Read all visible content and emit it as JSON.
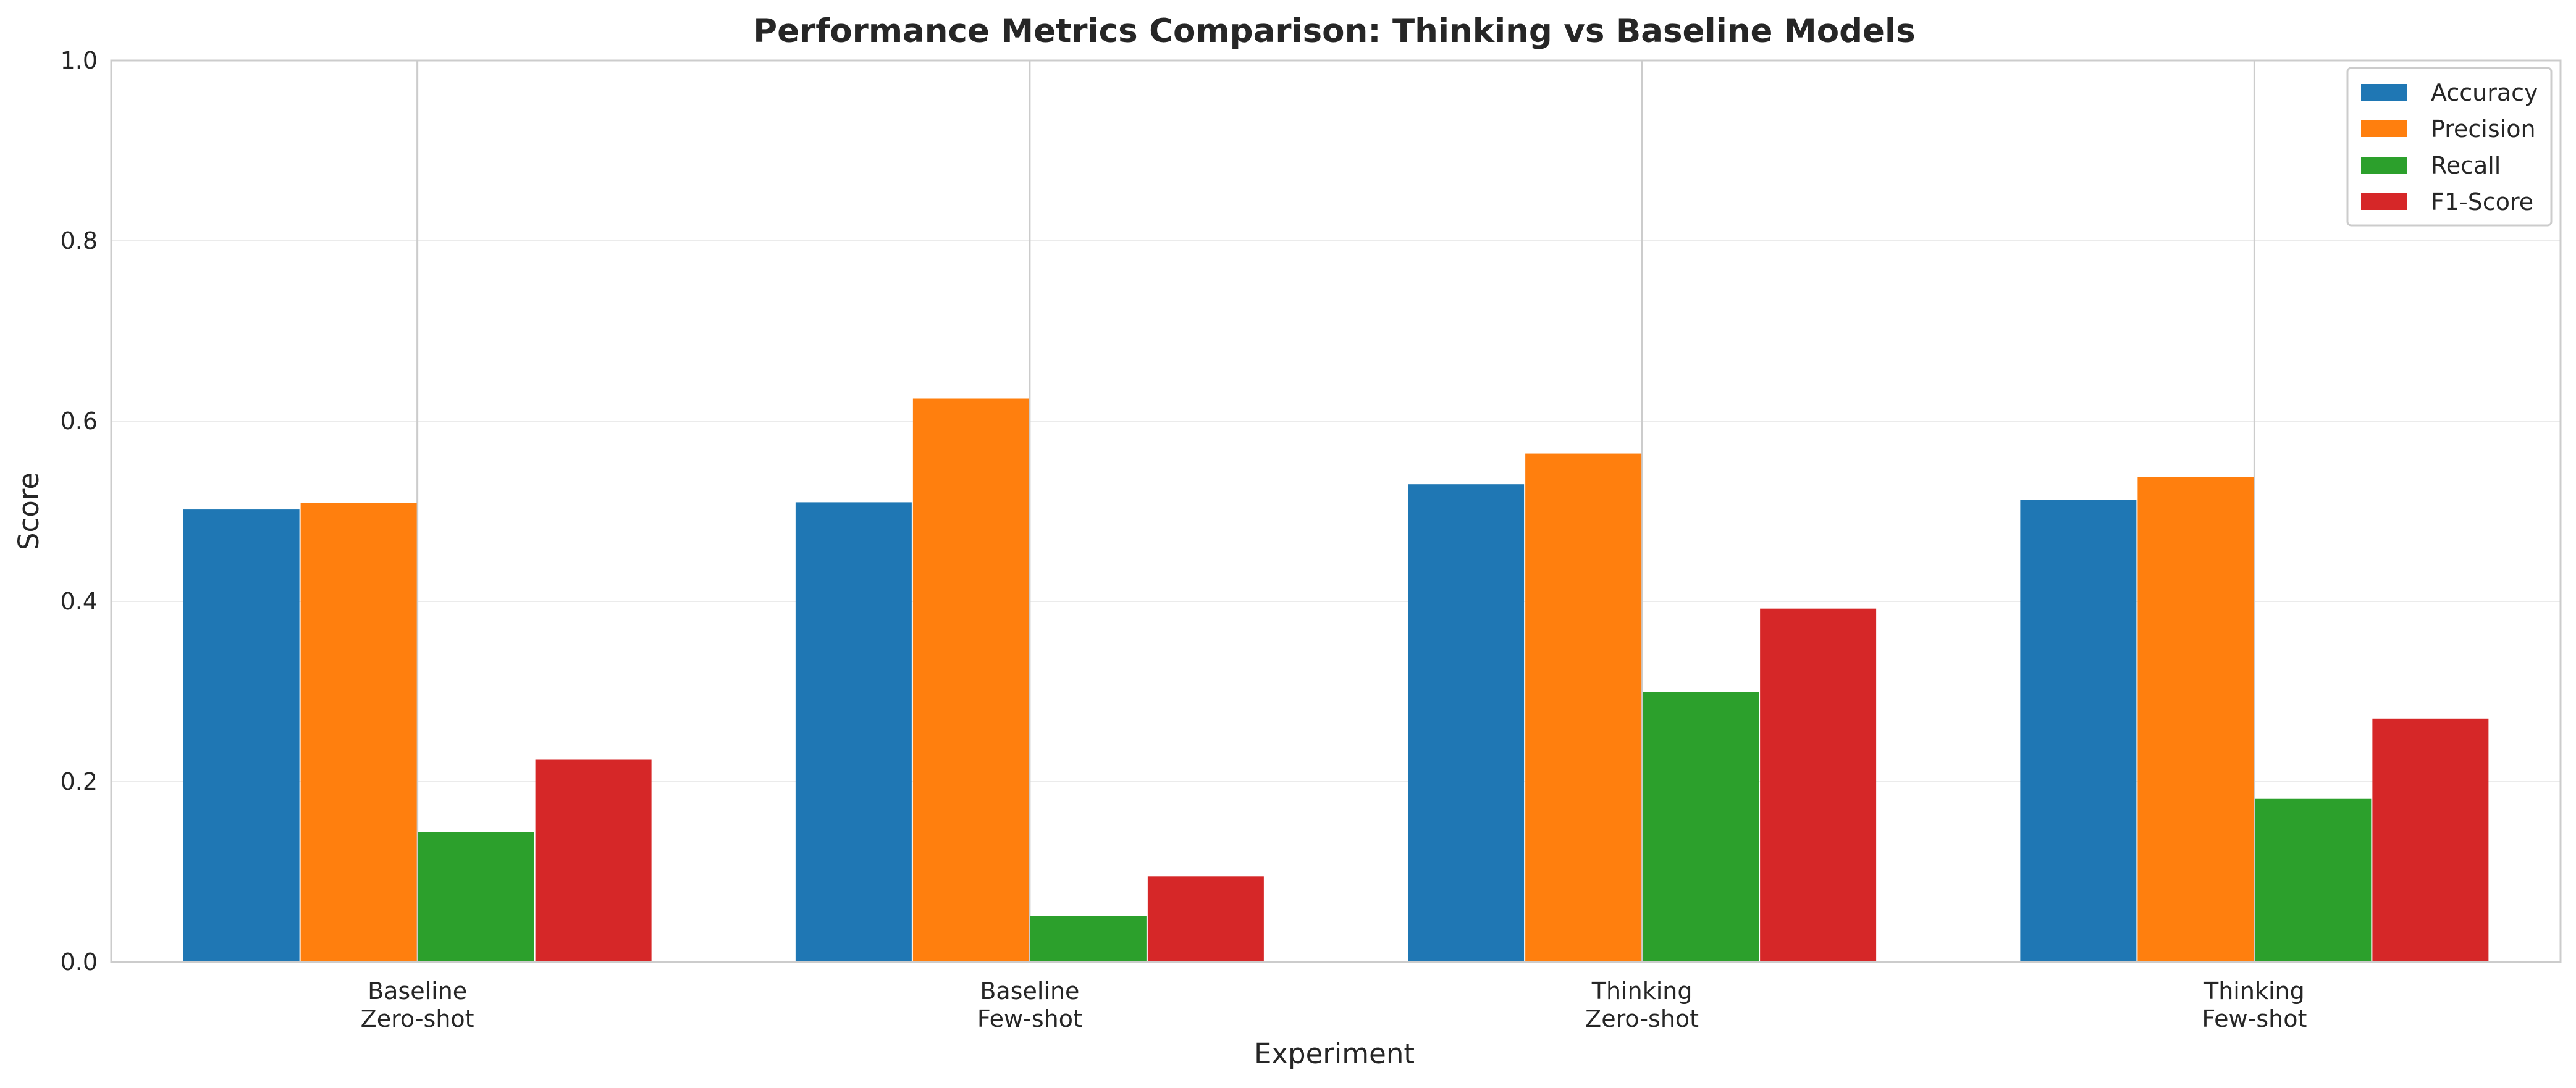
{
  "chart_data": {
    "type": "bar",
    "title": "Performance Metrics Comparison: Thinking vs Baseline Models",
    "xlabel": "Experiment",
    "ylabel": "Score",
    "ylim": [
      0,
      1.0
    ],
    "yticks": [
      "0.0",
      "0.2",
      "0.4",
      "0.6",
      "0.8",
      "1.0"
    ],
    "grid": true,
    "legend_position": "top-right",
    "categories": [
      [
        "Baseline",
        "Zero-shot"
      ],
      [
        "Baseline",
        "Few-shot"
      ],
      [
        "Thinking",
        "Zero-shot"
      ],
      [
        "Thinking",
        "Few-shot"
      ]
    ],
    "series": [
      {
        "name": "Accuracy",
        "color": "#1f77b4",
        "values": [
          0.502,
          0.51,
          0.53,
          0.513
        ]
      },
      {
        "name": "Precision",
        "color": "#ff7f0e",
        "values": [
          0.509,
          0.625,
          0.564,
          0.538
        ]
      },
      {
        "name": "Recall",
        "color": "#2ca02c",
        "values": [
          0.144,
          0.051,
          0.3,
          0.181
        ]
      },
      {
        "name": "F1-Score",
        "color": "#d62728",
        "values": [
          0.225,
          0.095,
          0.392,
          0.27
        ]
      }
    ]
  }
}
